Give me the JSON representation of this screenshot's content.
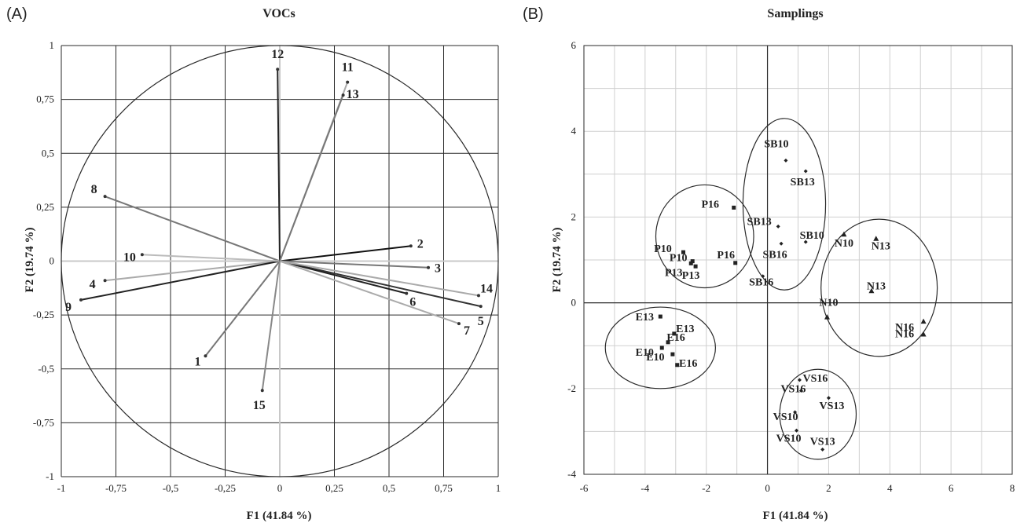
{
  "chart_data": [
    {
      "panel": "(A)",
      "type": "scatter",
      "subtype": "pca-loading-plot",
      "title": "VOCs",
      "xlabel": "F1 (41.84 %)",
      "ylabel": "F2 (19.74 %)",
      "xlim": [
        -1,
        1
      ],
      "ylim": [
        -1,
        1
      ],
      "xticks": [
        "-1",
        "-0,75",
        "-0,5",
        "-0,25",
        "0",
        "0,25",
        "0,5",
        "0,75",
        "1"
      ],
      "yticks": [
        "-1",
        "-0,75",
        "-0,5",
        "-0,25",
        "0",
        "0,25",
        "0,5",
        "0,75",
        "1"
      ],
      "grid": true,
      "unit_circle": true,
      "vectors": [
        {
          "label": "1",
          "x": -0.34,
          "y": -0.44,
          "color": "#777777"
        },
        {
          "label": "2",
          "x": 0.6,
          "y": 0.07,
          "color": "#111111"
        },
        {
          "label": "3",
          "x": 0.68,
          "y": -0.03,
          "color": "#777777"
        },
        {
          "label": "4",
          "x": -0.8,
          "y": -0.09,
          "color": "#aaaaaa"
        },
        {
          "label": "5",
          "x": 0.92,
          "y": -0.21,
          "color": "#333333"
        },
        {
          "label": "6",
          "x": 0.58,
          "y": -0.15,
          "color": "#222222"
        },
        {
          "label": "7",
          "x": 0.82,
          "y": -0.29,
          "color": "#aaaaaa"
        },
        {
          "label": "8",
          "x": -0.8,
          "y": 0.3,
          "color": "#777777"
        },
        {
          "label": "9",
          "x": -0.91,
          "y": -0.18,
          "color": "#222222"
        },
        {
          "label": "10",
          "x": -0.63,
          "y": 0.03,
          "color": "#bbbbbb"
        },
        {
          "label": "11",
          "x": 0.31,
          "y": 0.83,
          "color": "#aaaaaa"
        },
        {
          "label": "12",
          "x": -0.01,
          "y": 0.89,
          "color": "#222222"
        },
        {
          "label": "13",
          "x": 0.29,
          "y": 0.77,
          "color": "#777777"
        },
        {
          "label": "14",
          "x": 0.91,
          "y": -0.16,
          "color": "#aaaaaa"
        },
        {
          "label": "15",
          "x": -0.08,
          "y": -0.6,
          "color": "#888888"
        }
      ]
    },
    {
      "panel": "(B)",
      "type": "scatter",
      "subtype": "pca-score-plot",
      "title": "Samplings",
      "xlabel": "F1 (41.84 %)",
      "ylabel": "F2 (19.74 %)",
      "xlim": [
        -6,
        8
      ],
      "ylim": [
        -4,
        6
      ],
      "xticks": [
        "-6",
        "-4",
        "-2",
        "0",
        "2",
        "4",
        "6",
        "8"
      ],
      "yticks": [
        "-4",
        "-2",
        "0",
        "2",
        "4",
        "6"
      ],
      "grid": true,
      "points": [
        {
          "label": "SB10",
          "x": 0.6,
          "y": 3.32,
          "marker": "diamond"
        },
        {
          "label": "SB13",
          "x": 1.25,
          "y": 3.07,
          "marker": "diamond"
        },
        {
          "label": "SB13",
          "x": 0.35,
          "y": 1.78,
          "marker": "diamond"
        },
        {
          "label": "SB10",
          "x": 1.25,
          "y": 1.42,
          "marker": "diamond"
        },
        {
          "label": "SB16",
          "x": 0.45,
          "y": 1.38,
          "marker": "diamond"
        },
        {
          "label": "SB16",
          "x": -0.15,
          "y": 0.62,
          "marker": "diamond"
        },
        {
          "label": "P16",
          "x": -1.1,
          "y": 2.22,
          "marker": "square"
        },
        {
          "label": "P10",
          "x": -2.75,
          "y": 1.18,
          "marker": "square"
        },
        {
          "label": "P10",
          "x": -2.45,
          "y": 0.97,
          "marker": "square"
        },
        {
          "label": "P16",
          "x": -1.05,
          "y": 0.93,
          "marker": "square"
        },
        {
          "label": "P13",
          "x": -2.5,
          "y": 0.92,
          "marker": "square"
        },
        {
          "label": "P13",
          "x": -2.35,
          "y": 0.85,
          "marker": "square"
        },
        {
          "label": "N10",
          "x": 2.5,
          "y": 1.6,
          "marker": "triangle"
        },
        {
          "label": "N13",
          "x": 3.55,
          "y": 1.5,
          "marker": "triangle"
        },
        {
          "label": "N13",
          "x": 3.4,
          "y": 0.28,
          "marker": "triangle"
        },
        {
          "label": "N10",
          "x": 1.95,
          "y": -0.33,
          "marker": "triangle"
        },
        {
          "label": "N16",
          "x": 5.1,
          "y": -0.43,
          "marker": "triangle"
        },
        {
          "label": "N16",
          "x": 5.1,
          "y": -0.73,
          "marker": "triangle"
        },
        {
          "label": "E13",
          "x": -3.5,
          "y": -0.32,
          "marker": "square"
        },
        {
          "label": "E13",
          "x": -3.05,
          "y": -0.72,
          "marker": "square"
        },
        {
          "label": "E10",
          "x": -3.45,
          "y": -1.05,
          "marker": "square"
        },
        {
          "label": "E16",
          "x": -3.25,
          "y": -0.92,
          "marker": "square"
        },
        {
          "label": "E10",
          "x": -3.1,
          "y": -1.2,
          "marker": "square"
        },
        {
          "label": "E16",
          "x": -2.95,
          "y": -1.45,
          "marker": "square"
        },
        {
          "label": "VS16",
          "x": 1.05,
          "y": -1.8,
          "marker": "diamond"
        },
        {
          "label": "VS16",
          "x": 1.1,
          "y": -2.05,
          "marker": "diamond"
        },
        {
          "label": "VS13",
          "x": 2.0,
          "y": -2.22,
          "marker": "diamond"
        },
        {
          "label": "VS10",
          "x": 0.9,
          "y": -2.55,
          "marker": "diamond"
        },
        {
          "label": "VS10",
          "x": 0.95,
          "y": -2.98,
          "marker": "diamond"
        },
        {
          "label": "VS13",
          "x": 1.8,
          "y": -3.42,
          "marker": "diamond"
        }
      ],
      "group_ellipses": [
        {
          "group": "SB",
          "cx": 0.55,
          "cy": 2.3,
          "rx": 1.35,
          "ry": 2.0
        },
        {
          "group": "P",
          "cx": -2.05,
          "cy": 1.55,
          "rx": 1.6,
          "ry": 1.2
        },
        {
          "group": "N",
          "cx": 3.65,
          "cy": 0.35,
          "rx": 1.9,
          "ry": 1.6
        },
        {
          "group": "E",
          "cx": -3.5,
          "cy": -1.05,
          "rx": 1.8,
          "ry": 0.95
        },
        {
          "group": "VS",
          "cx": 1.65,
          "cy": -2.6,
          "rx": 1.25,
          "ry": 1.05
        }
      ]
    }
  ]
}
